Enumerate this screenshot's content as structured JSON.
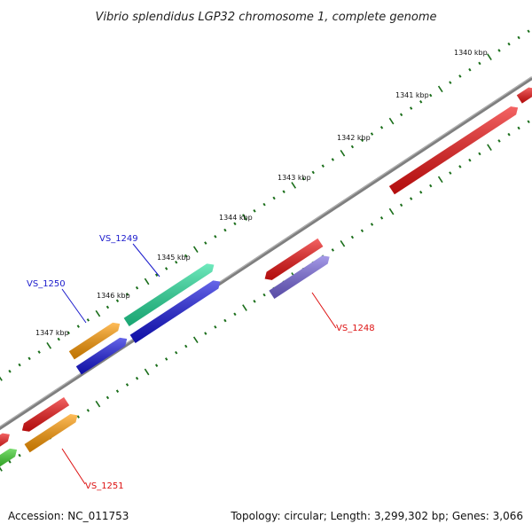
{
  "title": "Vibrio splendidus LGP32 chromosome 1, complete genome",
  "footer": {
    "accession": "Accession: NC_011753",
    "summary": "Topology: circular; Length: 3,299,302 bp; Genes: 3,066"
  },
  "kbp_labels": [
    "1340 kbp",
    "1341 kbp",
    "1342 kbp",
    "1343 kbp",
    "1344 kbp",
    "1345 kbp",
    "1346 kbp",
    "1347 kbp"
  ],
  "gene_labels": [
    {
      "text": "VS_1249",
      "color": "#1a1acc"
    },
    {
      "text": "VS_1250",
      "color": "#1a1acc"
    },
    {
      "text": "VS_1248",
      "color": "#dd1111"
    },
    {
      "text": "VS_1251",
      "color": "#dd1111"
    }
  ],
  "colors": {
    "backbone": "#7f7f7f",
    "tick": "#1a6e1a",
    "red": "#ee1111",
    "blue": "#1414dd",
    "green": "#22dd99",
    "orange": "#ff9900",
    "lavender": "#7766dd",
    "lime": "#33cc22"
  }
}
